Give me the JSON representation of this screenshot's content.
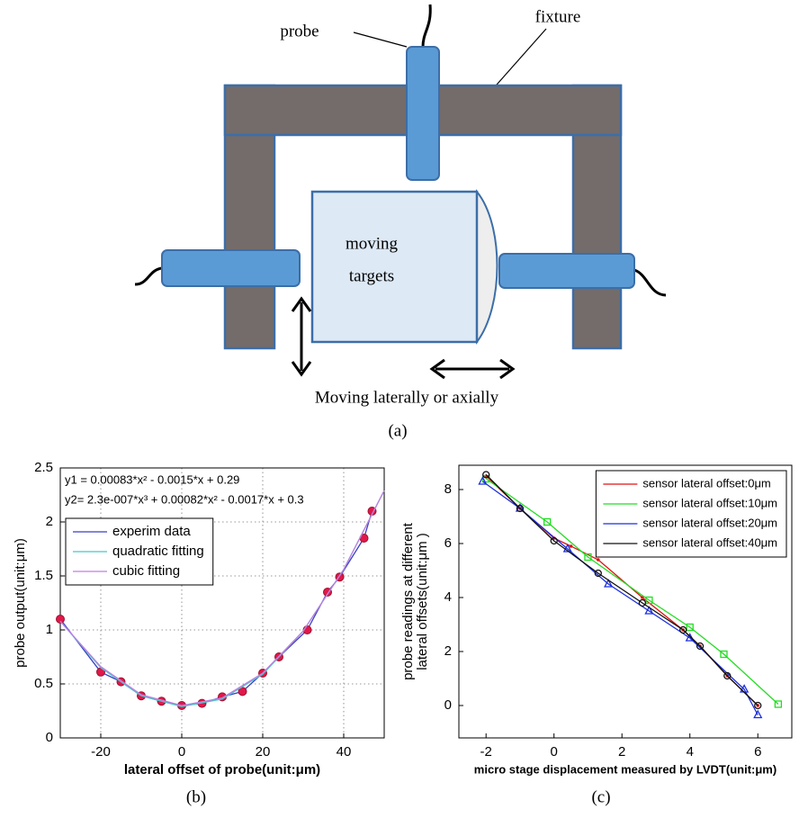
{
  "diagram": {
    "probe_label": "probe",
    "fixture_label": "fixture",
    "target_label": [
      "moving",
      "targets"
    ],
    "motion_label": "Moving laterally or axially",
    "caption": "(a)"
  },
  "chart_data": [
    {
      "type": "line",
      "caption": "(b)",
      "xlabel": "lateral offset of probe(unit:μm)",
      "ylabel": [
        "probe output(unit:μm)"
      ],
      "annotations": [
        "y1 = 0.00083*x² - 0.0015*x + 0.29",
        "y2= 2.3e-007*x³ + 0.00082*x² - 0.0017*x + 0.3"
      ],
      "xlim": [
        -30,
        50
      ],
      "xticks": [
        -20,
        0,
        20,
        40
      ],
      "ylim": [
        0,
        2.5
      ],
      "yticks": [
        0,
        0.5,
        1,
        1.5,
        2,
        2.5
      ],
      "grid": true,
      "legend": "upper left",
      "series": [
        {
          "name": "experim data",
          "color": "#3a3fc4",
          "marker": "circle",
          "marker_color": "#e0194a",
          "x": [
            -30,
            -20,
            -15,
            -10,
            -5,
            0,
            5,
            10,
            15,
            20,
            24,
            31,
            36,
            39,
            45,
            47
          ],
          "values": [
            1.1,
            0.61,
            0.52,
            0.39,
            0.34,
            0.3,
            0.32,
            0.38,
            0.43,
            0.6,
            0.75,
            1.0,
            1.35,
            1.49,
            1.85,
            2.1
          ]
        },
        {
          "name": "quadratic fitting",
          "color": "#46c8c8",
          "marker": "none",
          "x": [
            -30,
            -20,
            -10,
            0,
            10,
            20,
            30,
            40,
            50
          ],
          "values": [
            1.08,
            0.65,
            0.39,
            0.29,
            0.36,
            0.59,
            0.99,
            1.56,
            2.29
          ]
        },
        {
          "name": "cubic fitting",
          "color": "#c07ee0",
          "marker": "none",
          "x": [
            -30,
            -20,
            -10,
            0,
            10,
            20,
            30,
            40,
            50
          ],
          "values": [
            1.08,
            0.66,
            0.4,
            0.3,
            0.37,
            0.6,
            0.99,
            1.56,
            2.29
          ]
        }
      ]
    },
    {
      "type": "line",
      "caption": "(c)",
      "xlabel": "micro stage displacement measured by LVDT(unit:μm)",
      "ylabel": [
        "probe readings at different",
        "lateral offsets(unit:μm )"
      ],
      "xlim": [
        -2.8,
        7
      ],
      "xticks": [
        -2,
        0,
        2,
        4,
        6
      ],
      "ylim": [
        -1.2,
        8.9
      ],
      "yticks": [
        0,
        2,
        4,
        6,
        8
      ],
      "grid": false,
      "legend": "upper right",
      "series": [
        {
          "name": "sensor lateral offset:0μm",
          "color": "#e01010",
          "marker": "dot",
          "x": [
            -2,
            -1,
            0,
            0.5,
            1.3,
            2.6,
            3.8,
            4.3,
            5.1,
            6.0
          ],
          "values": [
            8.5,
            7.3,
            6.2,
            5.9,
            5.4,
            4.0,
            2.8,
            2.2,
            1.1,
            0
          ]
        },
        {
          "name": "sensor lateral offset:10μm",
          "color": "#22dd22",
          "marker": "square",
          "x": [
            -2,
            -0.2,
            1,
            2.8,
            4,
            5,
            6.6
          ],
          "values": [
            8.4,
            6.8,
            5.5,
            3.9,
            2.9,
            1.9,
            0.05
          ]
        },
        {
          "name": "sensor lateral offset:20μm",
          "color": "#1a2ee0",
          "marker": "triangle",
          "x": [
            -2.1,
            -1,
            0.4,
            1.6,
            2.8,
            4,
            5.6,
            6
          ],
          "values": [
            8.3,
            7.3,
            5.8,
            4.5,
            3.5,
            2.5,
            0.6,
            -0.35
          ]
        },
        {
          "name": "sensor lateral offset:40μm",
          "color": "#111111",
          "marker": "circle-open",
          "x": [
            -2,
            -1,
            0,
            1.3,
            2.6,
            3.8,
            4.3,
            5.1,
            6
          ],
          "values": [
            8.55,
            7.3,
            6.1,
            4.9,
            3.8,
            2.8,
            2.2,
            1.1,
            0
          ]
        }
      ]
    }
  ]
}
